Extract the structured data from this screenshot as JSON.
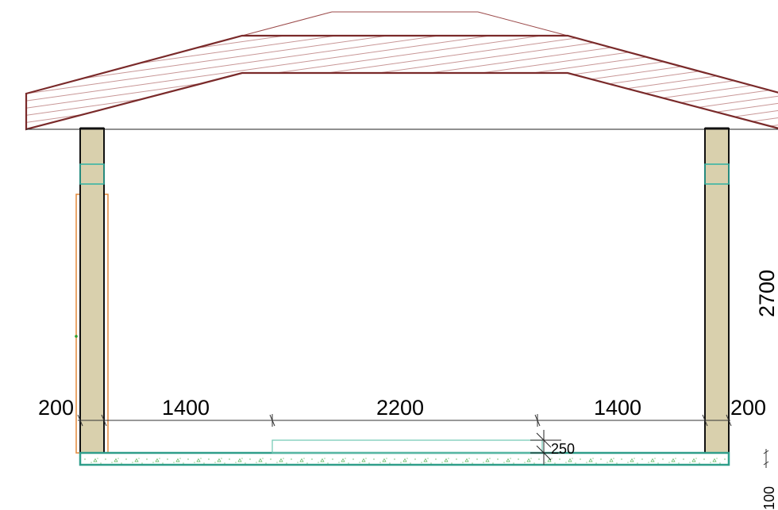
{
  "dimensions": {
    "horizontal": {
      "left_wall": "200",
      "left_span": "1400",
      "center_span": "2200",
      "right_span": "1400",
      "right_wall": "200"
    },
    "vertical": {
      "wall_height": "2700",
      "slab_thickness": "100"
    },
    "step_height": "250"
  },
  "colors": {
    "roof_outline": "#7a2a2a",
    "roof_hatch": "#b06a6a",
    "wall_fill": "#d9d0ad",
    "wall_outline": "#111111",
    "slab_outline": "#2f9e8a",
    "insulation_orange": "#e3883a",
    "wall_accent_teal": "#2fb3a3",
    "dimension_line": "#333333"
  }
}
